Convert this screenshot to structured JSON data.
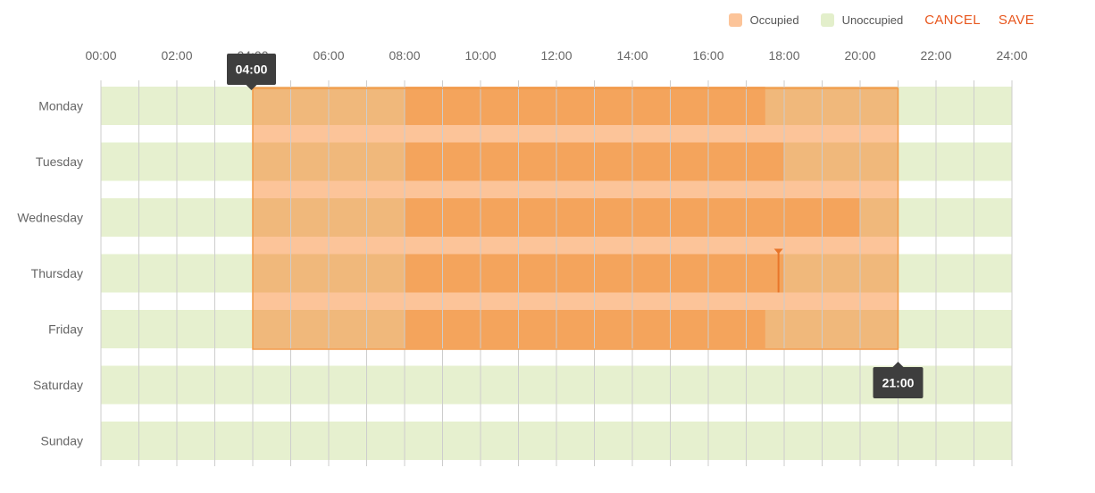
{
  "toolbar": {
    "legend": [
      {
        "label": "Occupied",
        "color": "#FCC499"
      },
      {
        "label": "Unoccupied",
        "color": "#E3EFCB"
      }
    ],
    "cancel_label": "CANCEL",
    "save_label": "SAVE",
    "accent_color": "#E8571E"
  },
  "colors": {
    "unoccupied": "#E6F0CF",
    "occupied": "#F4A259",
    "band": "#FCC499",
    "selection_fill": "#F0B87B",
    "selection_border": "#F29A48",
    "tooltip_bg": "#3E3E3E",
    "grid": "#CDCDCD"
  },
  "time_axis": {
    "start_hour": 0,
    "end_hour": 24,
    "tick_labels": [
      "00:00",
      "02:00",
      "04:00",
      "06:00",
      "08:00",
      "10:00",
      "12:00",
      "14:00",
      "16:00",
      "18:00",
      "20:00",
      "22:00",
      "24:00"
    ]
  },
  "days": [
    {
      "name": "Monday",
      "occupied": [
        [
          8,
          17.5
        ]
      ]
    },
    {
      "name": "Tuesday",
      "occupied": [
        [
          8,
          18
        ]
      ]
    },
    {
      "name": "Wednesday",
      "occupied": [
        [
          8,
          20
        ]
      ]
    },
    {
      "name": "Thursday",
      "occupied": [
        [
          8,
          18
        ]
      ]
    },
    {
      "name": "Friday",
      "occupied": [
        [
          8,
          17.5
        ]
      ]
    },
    {
      "name": "Saturday",
      "occupied": []
    },
    {
      "name": "Sunday",
      "occupied": []
    }
  ],
  "selection": {
    "start_label": "04:00",
    "end_label": "21:00",
    "start_hour": 4,
    "end_hour": 21,
    "first_day": 0,
    "last_day": 4
  },
  "cursor_marker": {
    "day": 3,
    "hour": 17.85
  }
}
